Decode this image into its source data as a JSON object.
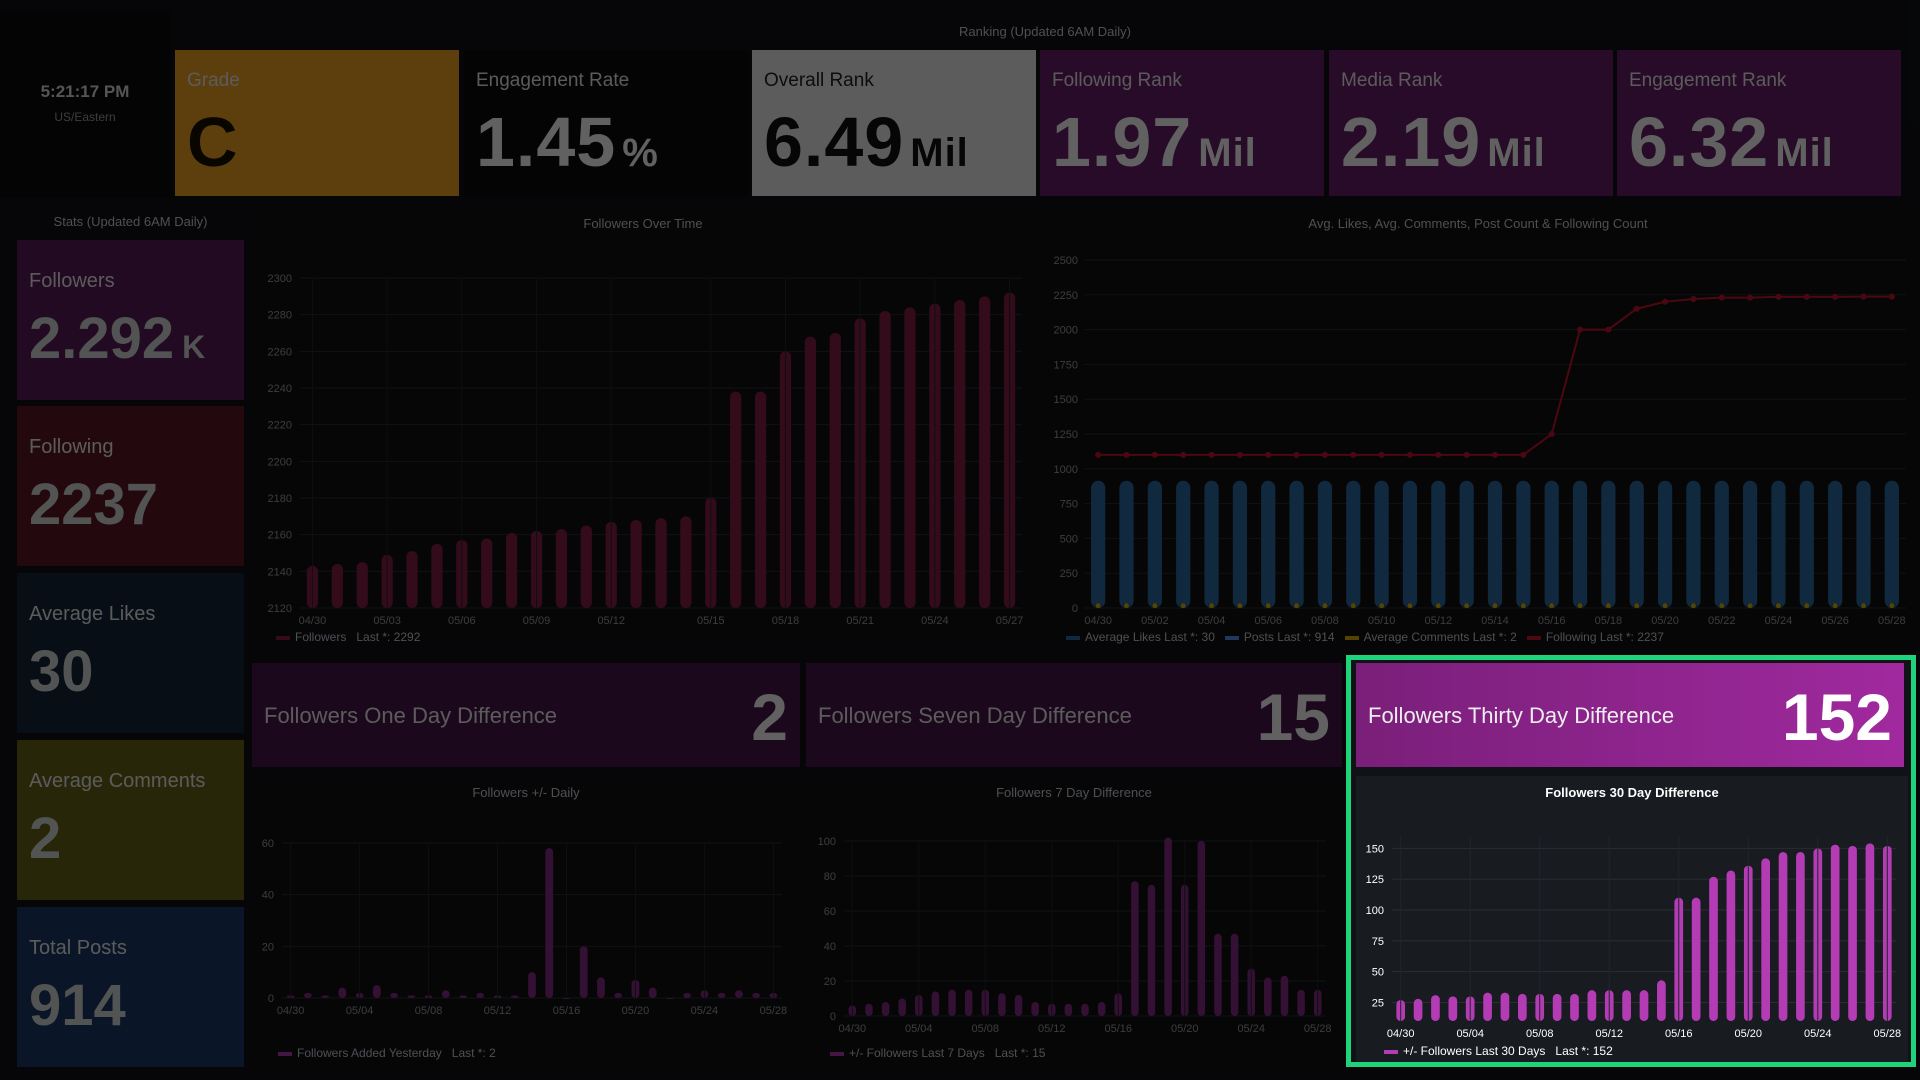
{
  "header": {
    "clock": {
      "time": "5:21:17 PM",
      "zone": "US/Eastern"
    },
    "ranking_title": "Ranking (Updated 6AM Daily)",
    "ranks": [
      {
        "label": "Grade",
        "value": "C",
        "unit": "",
        "bg": "#f5a623",
        "color": "#1a1200"
      },
      {
        "label": "Engagement Rate",
        "value": "1.45",
        "unit": "%",
        "bg": "#0b0c0e",
        "color": "#ffffff"
      },
      {
        "label": "Overall Rank",
        "value": "6.49",
        "unit": "Mil",
        "bg": "#f2f2f2",
        "color": "#111111"
      },
      {
        "label": "Following Rank",
        "value": "1.97",
        "unit": "Mil",
        "bg": "#6b1e6b",
        "color": "#ffffff"
      },
      {
        "label": "Media Rank",
        "value": "2.19",
        "unit": "Mil",
        "bg": "#6b1e6b",
        "color": "#ffffff"
      },
      {
        "label": "Engagement Rank",
        "value": "6.32",
        "unit": "Mil",
        "bg": "#6b1e6b",
        "color": "#ffffff"
      }
    ]
  },
  "stats": {
    "title": "Stats (Updated 6AM Daily)",
    "tiles": [
      {
        "label": "Followers",
        "value": "2.292",
        "unit": "K",
        "bg": "#5a1c5a"
      },
      {
        "label": "Following",
        "value": "2237",
        "unit": "",
        "bg": "#5e1a22"
      },
      {
        "label": "Average Likes",
        "value": "30",
        "unit": "",
        "bg": "#13253a"
      },
      {
        "label": "Average Comments",
        "value": "2",
        "unit": "",
        "bg": "#6a641a"
      },
      {
        "label": "Total Posts",
        "value": "914",
        "unit": "",
        "bg": "#1c3a66"
      }
    ]
  },
  "diffs": [
    {
      "label": "Followers One Day Difference",
      "value": "2"
    },
    {
      "label": "Followers Seven Day Difference",
      "value": "15"
    },
    {
      "label": "Followers Thirty Day Difference",
      "value": "152"
    }
  ],
  "colors": {
    "accent": "#a0299e",
    "bar": "#b33bb3",
    "highlight": "#1ed37a",
    "blue": "#2f6da3",
    "red": "#c4162a",
    "yellow": "#e0b400"
  },
  "chart_data": [
    {
      "type": "bar",
      "title": "Followers Over Time",
      "legend": "Followers",
      "legend_last": "Last *: 2292",
      "x": [
        "04/30",
        "05/01",
        "05/02",
        "05/03",
        "05/04",
        "05/05",
        "05/06",
        "05/07",
        "05/08",
        "05/09",
        "05/10",
        "05/11",
        "05/12",
        "05/13",
        "05/14",
        "05/15",
        "05/16",
        "05/17",
        "05/18",
        "05/19",
        "05/20",
        "05/21",
        "05/22",
        "05/23",
        "05/24",
        "05/25",
        "05/26",
        "05/27",
        "05/28"
      ],
      "xticks": [
        "04/30",
        "05/03",
        "05/06",
        "05/09",
        "05/12",
        "05/15",
        "05/18",
        "05/21",
        "05/24",
        "05/27"
      ],
      "values": [
        2143,
        2144,
        2145,
        2149,
        2151,
        2155,
        2157,
        2158,
        2161,
        2162,
        2163,
        2165,
        2167,
        2168,
        2169,
        2170,
        2180,
        2238,
        2238,
        2260,
        2268,
        2270,
        2278,
        2282,
        2284,
        2286,
        2288,
        2290,
        2292
      ],
      "ylim": [
        2120,
        2300
      ],
      "yticks": [
        2120,
        2140,
        2160,
        2180,
        2200,
        2220,
        2240,
        2260,
        2280,
        2300
      ]
    },
    {
      "type": "bar",
      "title": "Avg. Likes, Avg. Comments, Post Count & Following Count",
      "x": [
        "04/30",
        "05/01",
        "05/02",
        "05/03",
        "05/04",
        "05/05",
        "05/06",
        "05/07",
        "05/08",
        "05/09",
        "05/10",
        "05/11",
        "05/12",
        "05/13",
        "05/14",
        "05/15",
        "05/16",
        "05/17",
        "05/18",
        "05/19",
        "05/20",
        "05/21",
        "05/22",
        "05/23",
        "05/24",
        "05/25",
        "05/26",
        "05/27",
        "05/28"
      ],
      "xticks": [
        "04/30",
        "05/02",
        "05/04",
        "05/06",
        "05/08",
        "05/10",
        "05/12",
        "05/14",
        "05/16",
        "05/18",
        "05/20",
        "05/22",
        "05/24",
        "05/26",
        "05/28"
      ],
      "series": [
        {
          "name": "Average Likes",
          "last": "Last *: 30",
          "values": [
            30,
            30,
            30,
            30,
            30,
            30,
            30,
            30,
            30,
            30,
            30,
            30,
            30,
            30,
            30,
            30,
            30,
            30,
            30,
            30,
            30,
            30,
            30,
            30,
            30,
            30,
            30,
            30,
            30
          ]
        },
        {
          "name": "Posts",
          "last": "Last *: 914",
          "values": [
            914,
            914,
            914,
            914,
            914,
            914,
            914,
            914,
            914,
            914,
            914,
            914,
            914,
            914,
            914,
            914,
            914,
            914,
            914,
            914,
            914,
            914,
            914,
            914,
            914,
            914,
            914,
            914,
            914
          ]
        },
        {
          "name": "Average Comments",
          "last": "Last *: 2",
          "values": [
            2,
            2,
            2,
            2,
            2,
            2,
            2,
            2,
            2,
            2,
            2,
            2,
            2,
            2,
            2,
            2,
            2,
            2,
            2,
            2,
            2,
            2,
            2,
            2,
            2,
            2,
            2,
            2,
            2
          ]
        },
        {
          "name": "Following",
          "last": "Last *: 2237",
          "values": [
            1100,
            1100,
            1100,
            1100,
            1100,
            1100,
            1100,
            1100,
            1100,
            1100,
            1100,
            1100,
            1100,
            1100,
            1100,
            1100,
            1250,
            2000,
            2000,
            2150,
            2200,
            2220,
            2230,
            2230,
            2235,
            2235,
            2235,
            2237,
            2237
          ]
        }
      ],
      "ylim": [
        0,
        2500
      ],
      "yticks": [
        0,
        250,
        500,
        750,
        1000,
        1250,
        1500,
        1750,
        2000,
        2250,
        2500
      ]
    },
    {
      "type": "bar",
      "title": "Followers +/- Daily",
      "legend": "Followers Added Yesterday",
      "legend_last": "Last *: 2",
      "xticks": [
        "04/30",
        "05/04",
        "05/08",
        "05/12",
        "05/16",
        "05/20",
        "05/24",
        "05/28"
      ],
      "values": [
        1,
        2,
        1,
        4,
        2,
        5,
        2,
        1,
        1,
        3,
        1,
        2,
        1,
        1,
        10,
        58,
        0,
        20,
        8,
        2,
        7,
        4,
        0,
        2,
        3,
        2,
        3,
        2,
        2
      ],
      "ylim": [
        0,
        60
      ],
      "yticks": [
        0,
        20,
        40,
        60
      ]
    },
    {
      "type": "bar",
      "title": "Followers 7 Day Difference",
      "legend": "+/- Followers Last 7 Days",
      "legend_last": "Last *: 15",
      "xticks": [
        "04/30",
        "05/04",
        "05/08",
        "05/12",
        "05/16",
        "05/20",
        "05/24",
        "05/28"
      ],
      "values": [
        6,
        7,
        8,
        10,
        12,
        14,
        15,
        15,
        15,
        13,
        12,
        8,
        7,
        7,
        7,
        8,
        13,
        77,
        75,
        102,
        75,
        100,
        47,
        47,
        27,
        22,
        23,
        15,
        15
      ],
      "ylim": [
        0,
        100
      ],
      "yticks": [
        0,
        20,
        40,
        60,
        80,
        100
      ]
    },
    {
      "type": "bar",
      "title": "Followers 30 Day Difference",
      "legend": "+/- Followers Last 30 Days",
      "legend_last": "Last *: 152",
      "xticks": [
        "04/30",
        "05/04",
        "05/08",
        "05/12",
        "05/16",
        "05/20",
        "05/24",
        "05/28"
      ],
      "values": [
        27,
        28,
        31,
        30,
        30,
        33,
        33,
        32,
        32,
        32,
        32,
        35,
        35,
        35,
        35,
        43,
        110,
        110,
        127,
        132,
        136,
        142,
        147,
        147,
        150,
        153,
        152,
        154,
        152
      ],
      "ylim": [
        10,
        160
      ],
      "yticks": [
        25,
        50,
        75,
        100,
        125,
        150
      ]
    }
  ]
}
